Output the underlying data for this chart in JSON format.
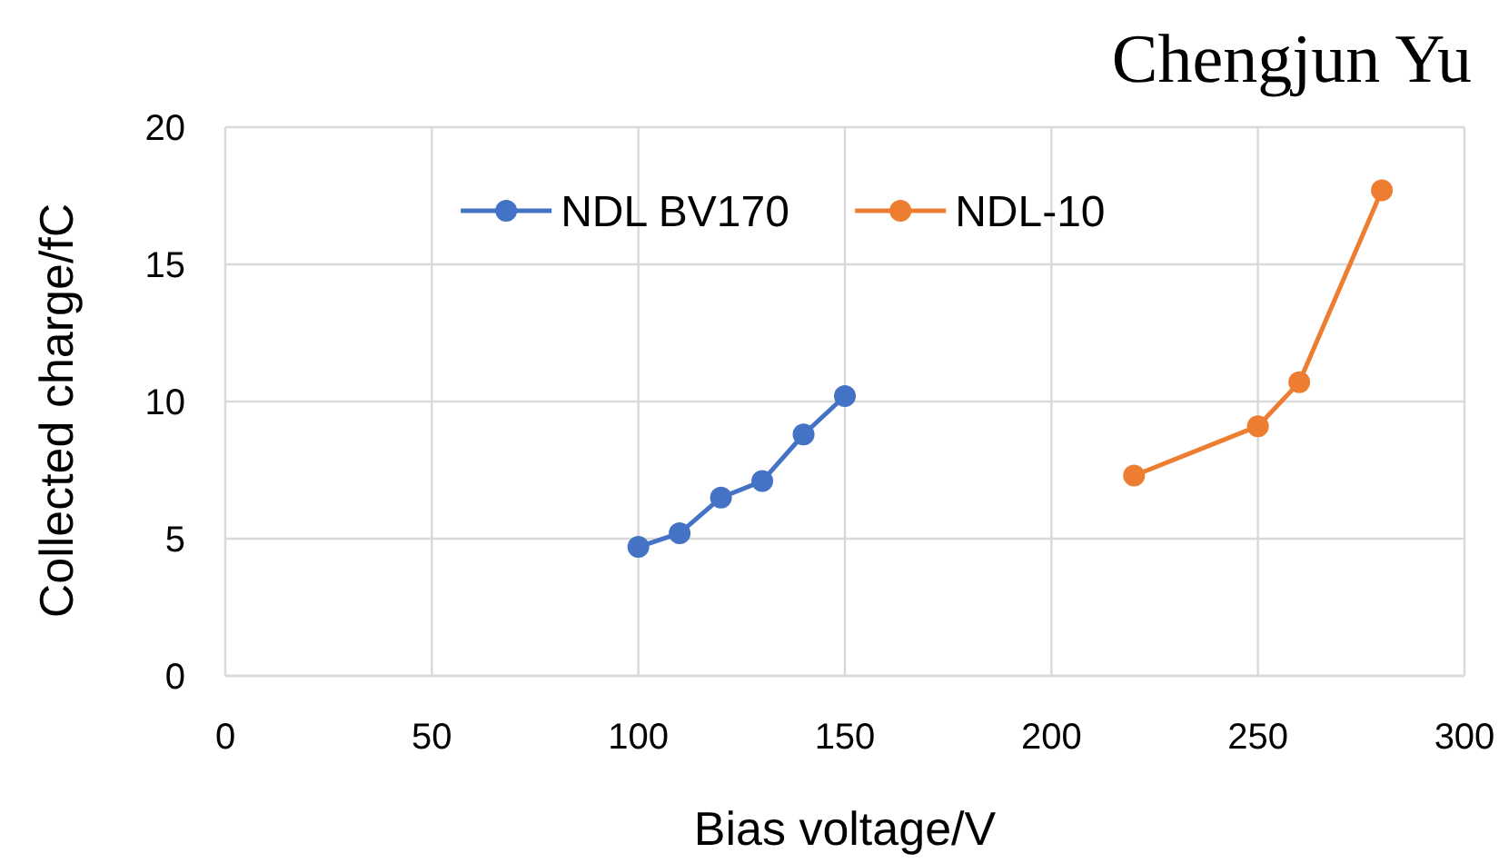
{
  "chart_data": {
    "type": "line",
    "xlabel": "Bias voltage/V",
    "ylabel": "Collected charge/fC",
    "annotations": [
      "Chengjun Yu"
    ],
    "xlim": [
      0,
      300
    ],
    "xticks": [
      0,
      50,
      100,
      150,
      200,
      250,
      300
    ],
    "ylim": [
      0,
      20
    ],
    "yticks": [
      0,
      5,
      10,
      15,
      20
    ],
    "grid": true,
    "legend": "top",
    "marker": "circle",
    "line_style": "solid",
    "series": [
      {
        "name": "NDL BV170",
        "color": "#4472c4",
        "x": [
          100,
          110,
          120,
          130,
          140,
          150
        ],
        "values": [
          4.7,
          5.2,
          6.5,
          7.1,
          8.8,
          10.2
        ]
      },
      {
        "name": "NDL-10",
        "color": "#ed7d31",
        "x": [
          220,
          250,
          260,
          280
        ],
        "values": [
          7.3,
          9.1,
          10.7,
          17.7
        ]
      }
    ]
  }
}
